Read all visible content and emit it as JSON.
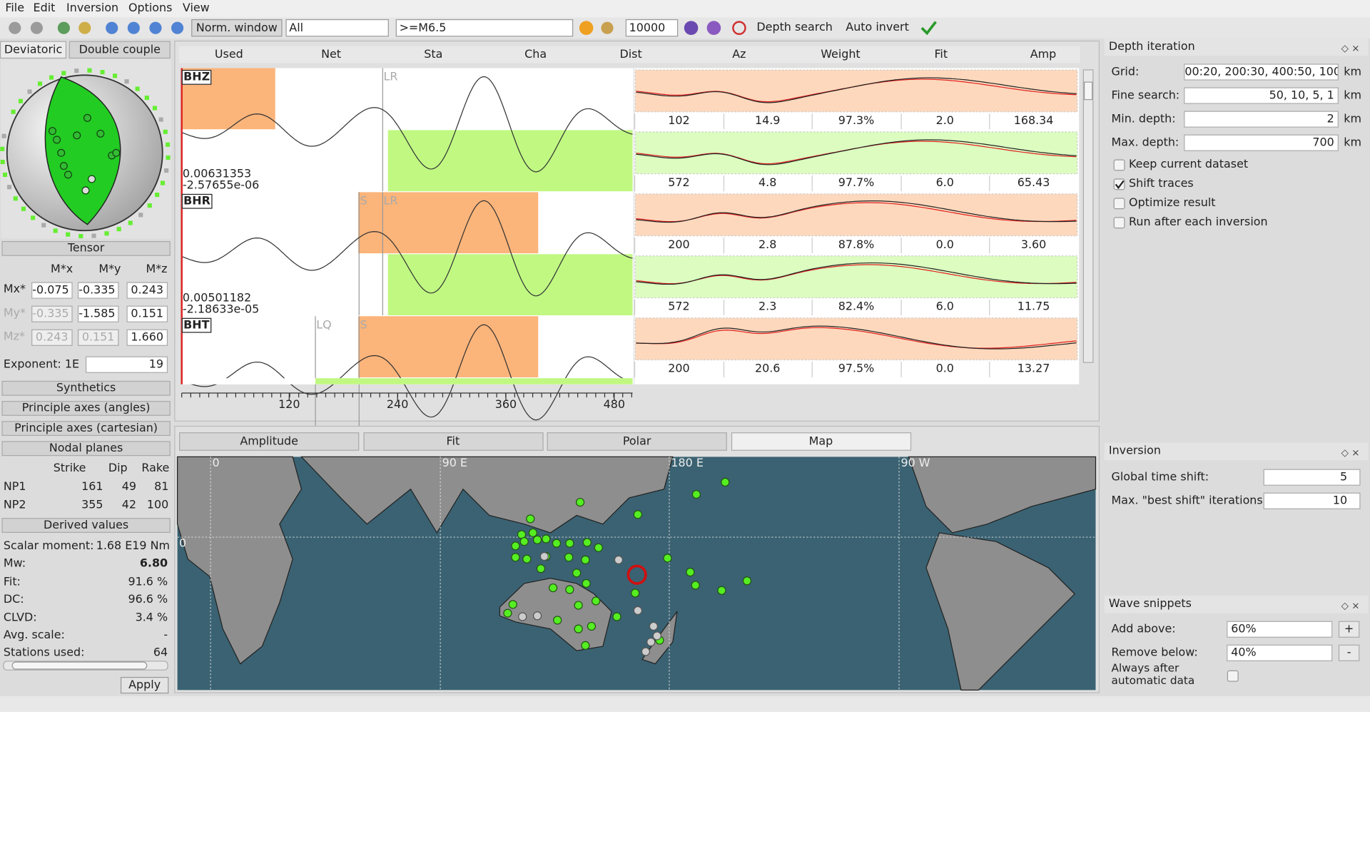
{
  "menu": [
    "File",
    "Edit",
    "Inversion",
    "Options",
    "View"
  ],
  "toolbar": {
    "norm_window": "Norm. window",
    "filter": "All",
    "magnitude": ">=M6.5",
    "count": "10000",
    "depth_search": "Depth search",
    "auto_invert": "Auto invert"
  },
  "left_panel": {
    "tabs": [
      "Deviatoric",
      "Double couple"
    ],
    "tensor": {
      "title": "Tensor",
      "headers": [
        "M*x",
        "M*y",
        "M*z"
      ],
      "rows": [
        {
          "label": "Mx*",
          "values": [
            "-0.075",
            "-0.335",
            "0.243"
          ]
        },
        {
          "label": "My*",
          "values": [
            "-0.335",
            "-1.585",
            "0.151"
          ]
        },
        {
          "label": "Mz*",
          "values": [
            "0.243",
            "0.151",
            "1.660"
          ]
        }
      ]
    },
    "exponent": {
      "label": "Exponent: 1E",
      "value": "19"
    },
    "buttons": [
      "Synthetics",
      "Principle axes (angles)",
      "Principle axes (cartesian)",
      "Nodal planes"
    ],
    "nodal_planes": {
      "headers": [
        "Strike",
        "Dip",
        "Rake"
      ],
      "rows": [
        {
          "label": "NP1",
          "values": [
            "161",
            "49",
            "81"
          ]
        },
        {
          "label": "NP2",
          "values": [
            "355",
            "42",
            "100"
          ]
        }
      ]
    },
    "derived": {
      "title": "Derived values",
      "rows": [
        {
          "label": "Scalar moment:",
          "value": "1.68 E19 Nm"
        },
        {
          "label": "Mw:",
          "value": "6.80"
        },
        {
          "label": "Fit:",
          "value": "91.6 %"
        },
        {
          "label": "DC:",
          "value": "96.6 %"
        },
        {
          "label": "CLVD:",
          "value": "3.4 %"
        },
        {
          "label": "Avg. scale:",
          "value": "-"
        },
        {
          "label": "Stations used:",
          "value": "64"
        }
      ]
    },
    "apply": "Apply"
  },
  "traces": {
    "headers": [
      "Used",
      "Net",
      "Sta",
      "Cha",
      "Dist",
      "Az",
      "Weight",
      "Fit",
      "Amp"
    ],
    "items": [
      {
        "channel": "BHZ",
        "phases": [
          "LR"
        ],
        "amp_max": "0.00631353",
        "amp_min": "-2.57655e-06",
        "rows": [
          [
            "102",
            "14.9",
            "97.3%",
            "2.0",
            "168.34"
          ],
          [
            "572",
            "4.8",
            "97.7%",
            "6.0",
            "65.43"
          ]
        ]
      },
      {
        "channel": "BHR",
        "phases": [
          "S",
          "LR"
        ],
        "amp_max": "0.00501182",
        "amp_min": "-2.18633e-05",
        "rows": [
          [
            "200",
            "2.8",
            "87.8%",
            "0.0",
            "3.60"
          ],
          [
            "572",
            "2.3",
            "82.4%",
            "6.0",
            "11.75"
          ]
        ]
      },
      {
        "channel": "BHT",
        "phases": [
          "LQ",
          "S"
        ],
        "rows": [
          [
            "200",
            "20.6",
            "97.5%",
            "0.0",
            "13.27"
          ]
        ]
      }
    ],
    "axis_ticks": [
      "120",
      "240",
      "360",
      "480"
    ]
  },
  "bottom_tabs": [
    "Amplitude",
    "Fit",
    "Polar",
    "Map"
  ],
  "map": {
    "labels": [
      "0",
      "90 E",
      "180 E",
      "90 W",
      "0"
    ]
  },
  "right_panel": {
    "depth_iteration": {
      "title": "Depth iteration",
      "fields": [
        {
          "label": "Grid:",
          "value": "00:20, 200:30, 400:50, 100",
          "unit": "km"
        },
        {
          "label": "Fine search:",
          "value": "50, 10, 5, 1",
          "unit": "km"
        },
        {
          "label": "Min. depth:",
          "value": "2",
          "unit": "km"
        },
        {
          "label": "Max. depth:",
          "value": "700",
          "unit": "km"
        }
      ],
      "checkboxes": [
        {
          "label": "Keep current dataset",
          "checked": false
        },
        {
          "label": "Shift traces",
          "checked": true
        },
        {
          "label": "Optimize result",
          "checked": false
        },
        {
          "label": "Run after each inversion",
          "checked": false
        }
      ]
    },
    "inversion": {
      "title": "Inversion",
      "fields": [
        {
          "label": "Global time shift:",
          "value": "5"
        },
        {
          "label": "Max. \"best shift\" iterations",
          "value": "10"
        }
      ]
    },
    "wave_snippets": {
      "title": "Wave snippets",
      "fields": [
        {
          "label": "Add above:",
          "value": "60%",
          "button": "+"
        },
        {
          "label": "Remove below:",
          "value": "40%",
          "button": "-"
        }
      ],
      "checkbox": {
        "label": "Always after automatic data",
        "checked": false
      }
    }
  }
}
